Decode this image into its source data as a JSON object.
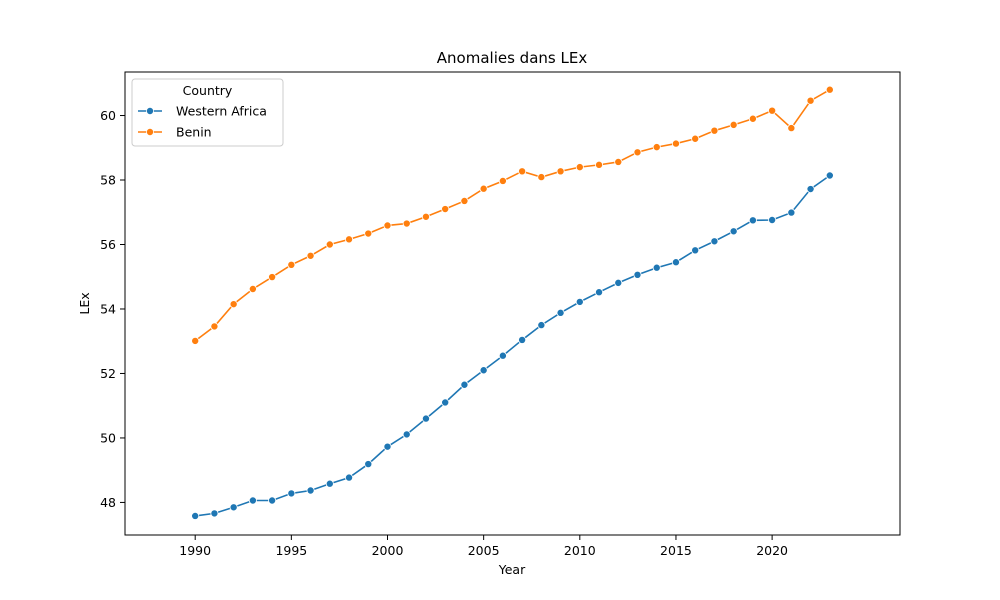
{
  "chart_data": {
    "type": "line",
    "title": "Anomalies dans LEx",
    "xlabel": "Year",
    "ylabel": "LEx",
    "xlim": [
      1986.35,
      2026.65
    ],
    "ylim": [
      46.99,
      61.35
    ],
    "xticks": [
      1990,
      1995,
      2000,
      2005,
      2010,
      2015,
      2020
    ],
    "yticks": [
      48,
      50,
      52,
      54,
      56,
      58,
      60
    ],
    "legend": {
      "title": "Country",
      "placement": "top-left"
    },
    "grid": false,
    "x": [
      1990,
      1991,
      1992,
      1993,
      1994,
      1995,
      1996,
      1997,
      1998,
      1999,
      2000,
      2001,
      2002,
      2003,
      2004,
      2005,
      2006,
      2007,
      2008,
      2009,
      2010,
      2011,
      2012,
      2013,
      2014,
      2015,
      2016,
      2017,
      2018,
      2019,
      2020,
      2021,
      2022,
      2023
    ],
    "series": [
      {
        "name": "Western Africa",
        "color": "#1f77b4",
        "values": [
          47.58,
          47.66,
          47.85,
          48.06,
          48.06,
          48.28,
          48.37,
          48.58,
          48.77,
          49.19,
          49.73,
          50.11,
          50.6,
          51.1,
          51.65,
          52.1,
          52.55,
          53.04,
          53.5,
          53.88,
          54.22,
          54.52,
          54.81,
          55.06,
          55.28,
          55.45,
          55.82,
          56.1,
          56.41,
          56.75,
          56.76,
          56.99,
          57.72,
          58.14
        ]
      },
      {
        "name": "Benin",
        "color": "#ff7f0e",
        "values": [
          53.01,
          53.46,
          54.15,
          54.62,
          54.99,
          55.37,
          55.65,
          56.0,
          56.16,
          56.34,
          56.59,
          56.65,
          56.86,
          57.1,
          57.35,
          57.73,
          57.97,
          58.27,
          58.09,
          58.27,
          58.4,
          58.47,
          58.56,
          58.86,
          59.02,
          59.13,
          59.28,
          59.53,
          59.71,
          59.9,
          60.15,
          59.61,
          60.46,
          60.8
        ]
      }
    ]
  }
}
